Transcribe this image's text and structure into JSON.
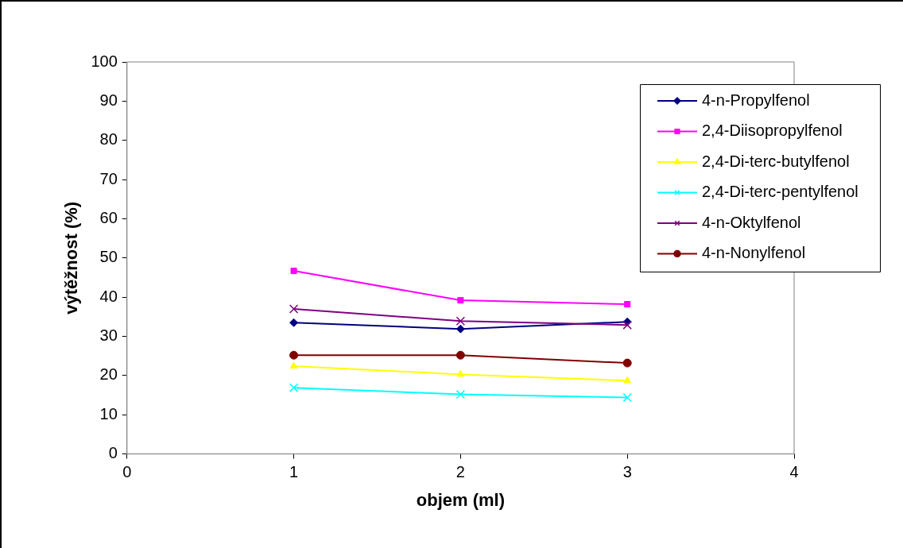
{
  "chart_data": {
    "type": "line",
    "xlabel": "objem (ml)",
    "ylabel": "výtěžnost (%)",
    "x": [
      1,
      2,
      3
    ],
    "xlim": [
      0,
      4
    ],
    "xticks": [
      0,
      1,
      2,
      3,
      4
    ],
    "ylim": [
      0,
      100
    ],
    "yticks": [
      0,
      10,
      20,
      30,
      40,
      50,
      60,
      70,
      80,
      90,
      100
    ],
    "grid": false,
    "legend": "top right",
    "series": [
      {
        "name": "4-n-Propylfenol",
        "color": "#000080",
        "marker": "diamond",
        "values": [
          33.5,
          31.9,
          33.7
        ]
      },
      {
        "name": "2,4-Diisopropylfenol",
        "color": "#ff00ff",
        "marker": "square",
        "values": [
          46.7,
          39.2,
          38.2
        ]
      },
      {
        "name": "2,4-Di-terc-butylfenol",
        "color": "#ffff00",
        "marker": "triangle",
        "values": [
          22.4,
          20.3,
          18.7
        ]
      },
      {
        "name": "2,4-Di-terc-pentylfenol",
        "color": "#00ffff",
        "marker": "cross",
        "values": [
          16.9,
          15.2,
          14.4
        ]
      },
      {
        "name": "4-n-Oktylfenol",
        "color": "#800080",
        "marker": "cross",
        "values": [
          37.0,
          33.9,
          32.9
        ]
      },
      {
        "name": "4-n-Nonylfenol",
        "color": "#800000",
        "marker": "circle",
        "values": [
          25.2,
          25.2,
          23.2
        ]
      }
    ]
  }
}
